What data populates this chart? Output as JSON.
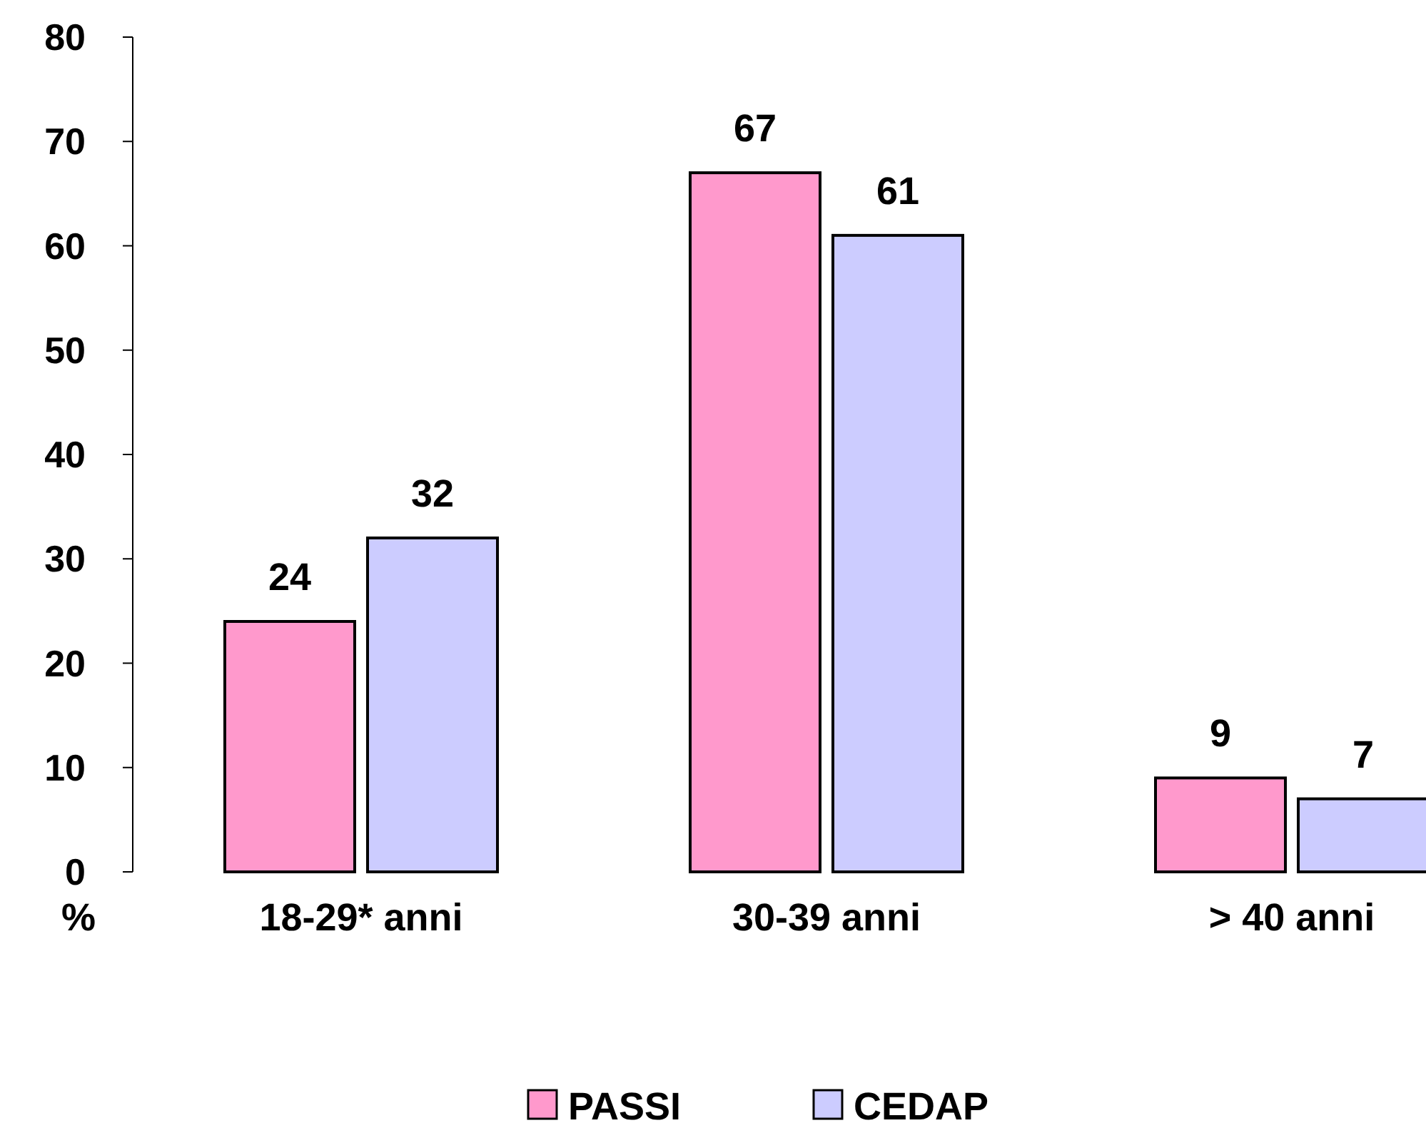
{
  "chart_data": {
    "type": "bar",
    "ylabel": "%",
    "categories": [
      "18-29* anni",
      "30-39 anni",
      "> 40 anni"
    ],
    "series": [
      {
        "name": "PASSI",
        "color": "#ff99cc",
        "values": [
          24,
          67,
          9
        ]
      },
      {
        "name": "CEDAP",
        "color": "#ccccff",
        "values": [
          32,
          61,
          7
        ]
      }
    ],
    "ylim": [
      0,
      80
    ],
    "yticks": [
      0,
      10,
      20,
      30,
      40,
      50,
      60,
      70,
      80
    ],
    "data_labels": true,
    "legend": "bottom",
    "grid": false
  }
}
